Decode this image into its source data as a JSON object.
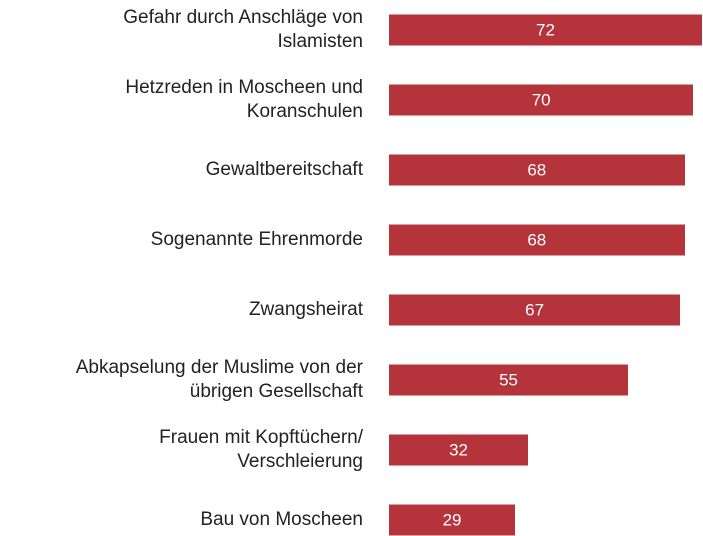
{
  "chart_data": {
    "type": "bar",
    "orientation": "horizontal",
    "categories": [
      "Gefahr durch Anschläge von\nIslamisten",
      "Hetzreden in Moscheen und\nKoranschulen",
      "Gewaltbereitschaft",
      "Sogenannte Ehrenmorde",
      "Zwangsheirat",
      "Abkapselung der Muslime von der\nübrigen Gesellschaft",
      "Frauen mit Kopftüchern/\nVerschleierung",
      "Bau von Moscheen"
    ],
    "values": [
      72,
      70,
      68,
      68,
      67,
      55,
      32,
      29
    ],
    "color": "#b5333a"
  }
}
